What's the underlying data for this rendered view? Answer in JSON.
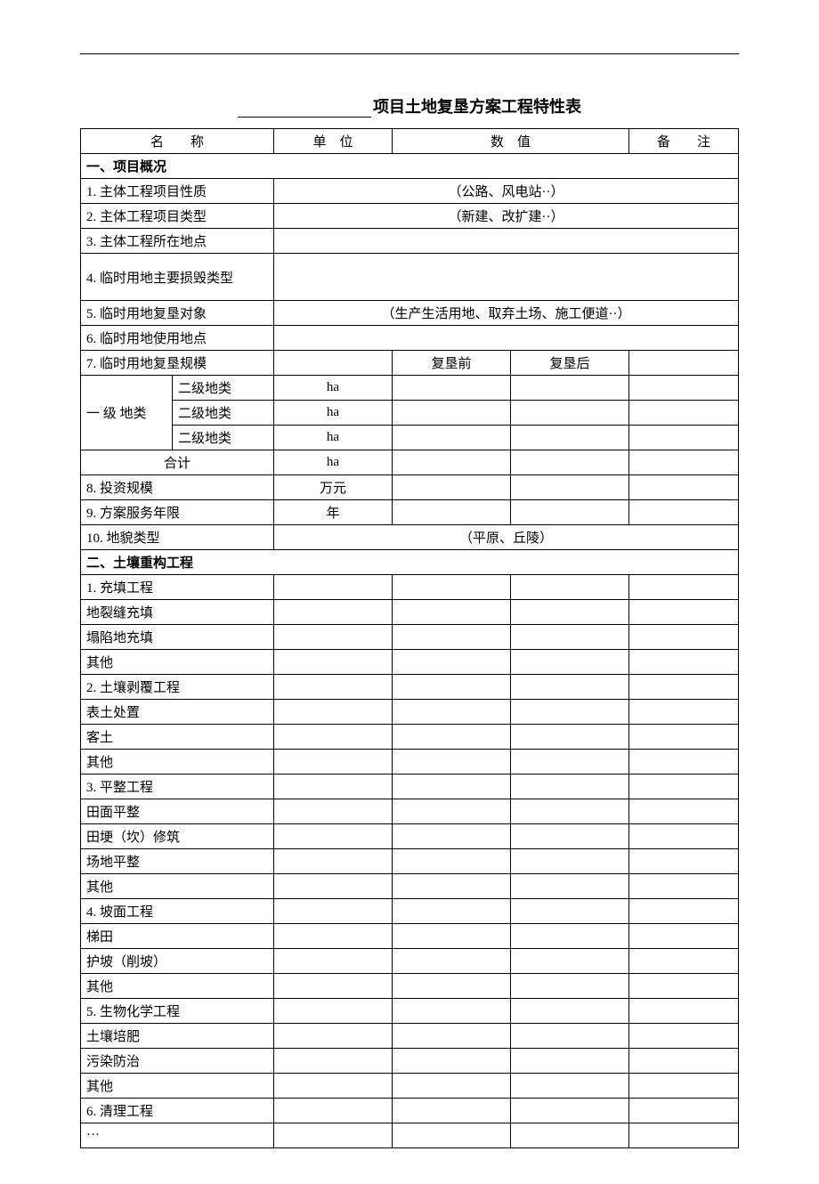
{
  "title_suffix": "项目土地复垦方案工程特性表",
  "headers": {
    "name": "名　　称",
    "unit": "单　位",
    "value": "数　值",
    "note": "备　　注"
  },
  "section1": {
    "heading": "一、项目概况",
    "r1": {
      "label": "1. 主体工程项目性质",
      "value": "（公路、风电站··）"
    },
    "r2": {
      "label": "2. 主体工程项目类型",
      "value": "（新建、改扩建··）"
    },
    "r3": {
      "label": "3. 主体工程所在地点",
      "value": ""
    },
    "r4": {
      "label": "4. 临时用地主要损毁类型",
      "value": ""
    },
    "r5": {
      "label": "5. 临时用地复垦对象",
      "value": "（生产生活用地、取弃土场、施工便道··）"
    },
    "r6": {
      "label": "6. 临时用地使用地点",
      "value": ""
    },
    "r7": {
      "label": "7. 临时用地复垦规模",
      "before": "复垦前",
      "after": "复垦后"
    },
    "landclass": {
      "level1": "一 级 地类",
      "sub": [
        "二级地类",
        "二级地类",
        "二级地类"
      ],
      "unit": "ha"
    },
    "total": {
      "label": "合计",
      "unit": "ha"
    },
    "r8": {
      "label": "8. 投资规模",
      "unit": "万元"
    },
    "r9": {
      "label": "9. 方案服务年限",
      "unit": "年"
    },
    "r10": {
      "label": "10. 地貌类型",
      "value": "（平原、丘陵）"
    }
  },
  "section2": {
    "heading": "二、土壤重构工程",
    "rows": [
      "1. 充填工程",
      "地裂缝充填",
      "塌陷地充填",
      "其他",
      "2. 土壤剥覆工程",
      "表土处置",
      "客土",
      "其他",
      "3. 平整工程",
      "田面平整",
      "田埂（坎）修筑",
      "场地平整",
      "其他",
      "4. 坡面工程",
      "梯田",
      "护坡（削坡）",
      "其他",
      "5. 生物化学工程",
      "土壤培肥",
      "污染防治",
      "其他",
      "6. 清理工程",
      "···"
    ]
  }
}
